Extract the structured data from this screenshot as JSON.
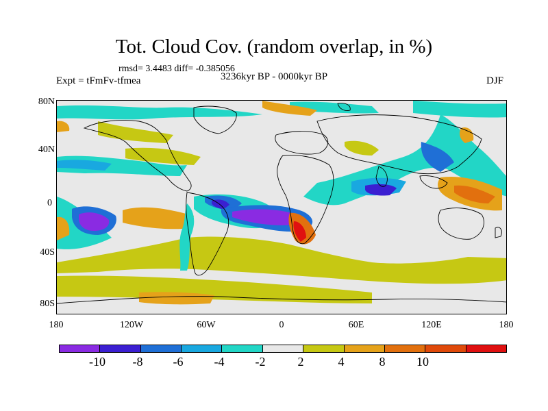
{
  "header": {
    "title": "Tot. Cloud Cov. (random overlap, in %)",
    "stats": "rmsd= 3.4483 diff= -0.385056",
    "expt": "Expt = tFmFv-tfmea",
    "period": "3236kyr BP - 0000kyr BP",
    "season": "DJF"
  },
  "map": {
    "lat_labels": [
      "80N",
      "40N",
      "0",
      "40S",
      "80S"
    ],
    "lon_labels": [
      "180",
      "120W",
      "60W",
      "0",
      "60E",
      "120E",
      "180"
    ],
    "background_color": "#e8e8e8"
  },
  "colorbar": {
    "labels": [
      "-10",
      "-8",
      "-6",
      "-4",
      "-2",
      "2",
      "4",
      "8",
      "10"
    ],
    "colors": [
      "#8a2be2",
      "#3b1fd1",
      "#1f6fd6",
      "#19a8e0",
      "#22d6c6",
      "#e8e8e8",
      "#c6c813",
      "#e5a21a",
      "#e2700e",
      "#e04a0a",
      "#e01010"
    ]
  }
}
